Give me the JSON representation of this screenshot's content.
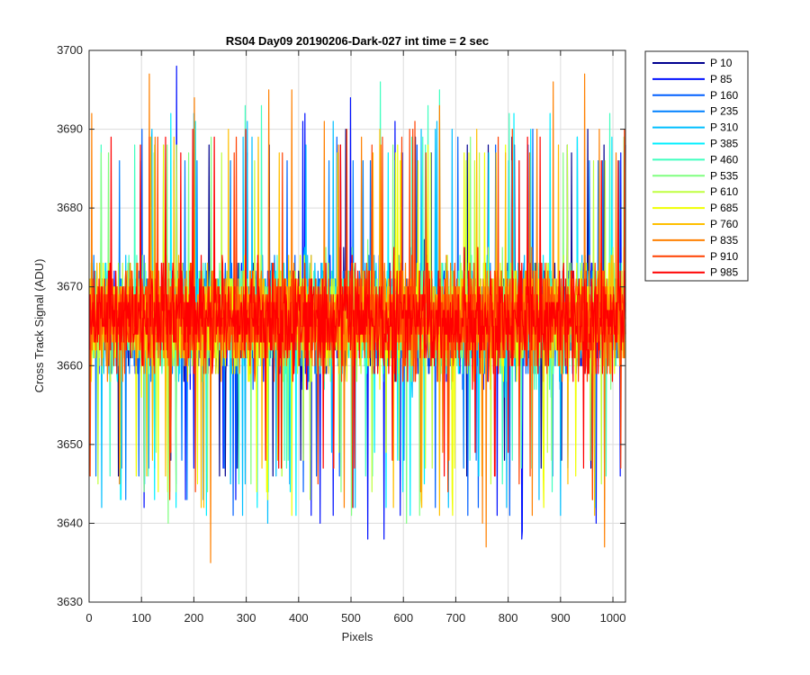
{
  "chart_data": {
    "type": "line",
    "title": "RS04 Day09 20190206-Dark-027 int time = 2 sec",
    "xlabel": "Pixels",
    "ylabel": "Cross Track Signal (ADU)",
    "xlim": [
      0,
      1024
    ],
    "ylim": [
      3630,
      3700
    ],
    "xticks": [
      0,
      100,
      200,
      300,
      400,
      500,
      600,
      700,
      800,
      900,
      1000
    ],
    "yticks": [
      3630,
      3640,
      3650,
      3660,
      3670,
      3680,
      3690,
      3700
    ],
    "grid": true,
    "legend_position": "outside-top-right",
    "n_pixels": 1024,
    "typical_level": 3666,
    "typical_range": [
      3649,
      3686
    ],
    "series": [
      {
        "name": "P 10",
        "color": "#00008F",
        "min": 3646,
        "max": 3690
      },
      {
        "name": "P 85",
        "color": "#0010FF",
        "min": 3638,
        "max": 3698
      },
      {
        "name": "P 160",
        "color": "#005FFF",
        "min": 3641,
        "max": 3690
      },
      {
        "name": "P 235",
        "color": "#0080FF",
        "min": 3643,
        "max": 3686
      },
      {
        "name": "P 310",
        "color": "#00BFFF",
        "min": 3640,
        "max": 3692
      },
      {
        "name": "P 385",
        "color": "#00EFFF",
        "min": 3641,
        "max": 3692
      },
      {
        "name": "P 460",
        "color": "#40FFBF",
        "min": 3644,
        "max": 3696
      },
      {
        "name": "P 535",
        "color": "#80FF80",
        "min": 3640,
        "max": 3689
      },
      {
        "name": "P 610",
        "color": "#BFFF40",
        "min": 3643,
        "max": 3688
      },
      {
        "name": "P 685",
        "color": "#F0FF00",
        "min": 3641,
        "max": 3688
      },
      {
        "name": "P 760",
        "color": "#FFBF00",
        "min": 3641,
        "max": 3690
      },
      {
        "name": "P 835",
        "color": "#FF8000",
        "min": 3635,
        "max": 3697
      },
      {
        "name": "P 910",
        "color": "#FF4000",
        "min": 3642,
        "max": 3691
      },
      {
        "name": "P 985",
        "color": "#FF0000",
        "min": 3646,
        "max": 3690
      }
    ]
  }
}
